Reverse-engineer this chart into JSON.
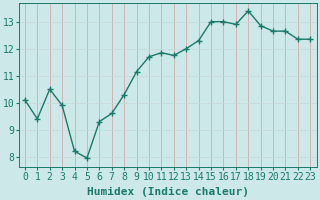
{
  "x": [
    0,
    1,
    2,
    3,
    4,
    5,
    6,
    7,
    8,
    9,
    10,
    11,
    12,
    13,
    14,
    15,
    16,
    17,
    18,
    19,
    20,
    21,
    22,
    23
  ],
  "y": [
    10.1,
    9.4,
    10.5,
    9.9,
    8.2,
    7.95,
    9.3,
    9.6,
    10.3,
    11.15,
    11.7,
    11.85,
    11.75,
    12.0,
    12.3,
    13.0,
    13.0,
    12.9,
    13.4,
    12.85,
    12.65,
    12.65,
    12.35,
    12.35
  ],
  "xlabel": "Humidex (Indice chaleur)",
  "xtick_labels": [
    "0",
    "1",
    "2",
    "3",
    "4",
    "5",
    "6",
    "7",
    "8",
    "9",
    "10",
    "11",
    "12",
    "13",
    "14",
    "15",
    "16",
    "17",
    "18",
    "19",
    "20",
    "21",
    "22",
    "23"
  ],
  "ytick_labels": [
    "8",
    "9",
    "10",
    "11",
    "12",
    "13"
  ],
  "yticks": [
    8,
    9,
    10,
    11,
    12,
    13
  ],
  "ylim": [
    7.6,
    13.7
  ],
  "xlim": [
    -0.5,
    23.5
  ],
  "line_color": "#1a7a6a",
  "marker_color": "#1a7a6a",
  "bg_color": "#cce8e8",
  "grid_color_v": "#d4a0a0",
  "grid_color_h": "#c8d8d8",
  "tick_color": "#1a7a6a",
  "xlabel_fontsize": 8,
  "tick_fontsize": 7
}
